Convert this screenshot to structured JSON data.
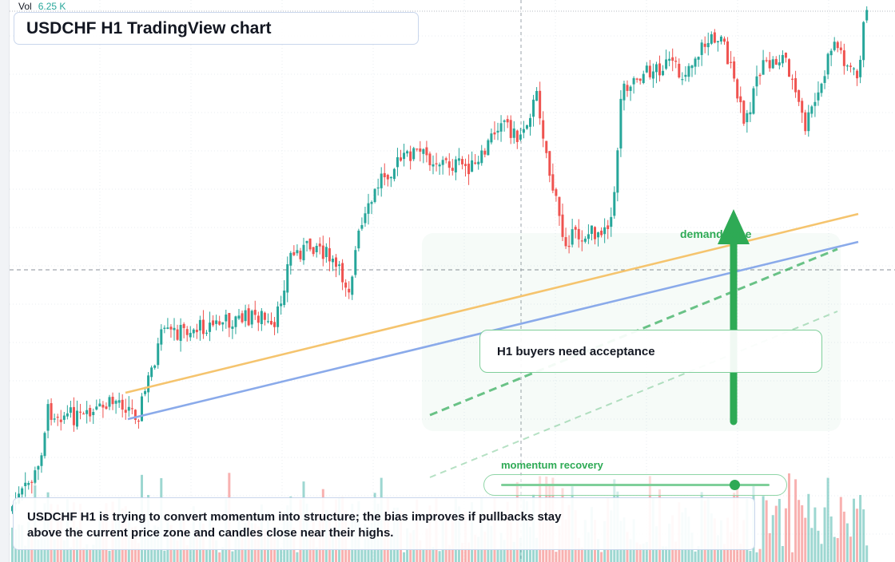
{
  "chart": {
    "title": "USDCHF H1 TradingView chart",
    "volume_label": "Vol",
    "volume_value": "6.25 K",
    "up_color": "#26a69a",
    "down_color": "#ef5350",
    "trendline_orange_color": "#f5c46e",
    "trendline_blue_color": "#8aaaea",
    "accent_green": "#2eaa55"
  },
  "annotations": {
    "zone_label": "demand zone",
    "callout": "H1 buyers need acceptance",
    "momentum_label": "momentum recovery",
    "momentum_level": 0.87,
    "note_line_1": "USDCHF H1 is trying to convert momentum into structure; the bias improves if pullbacks stay",
    "note_line_2": "above the current price zone and candles close near their highs.",
    "up_arrow_icon": "arrow-up-icon"
  }
}
